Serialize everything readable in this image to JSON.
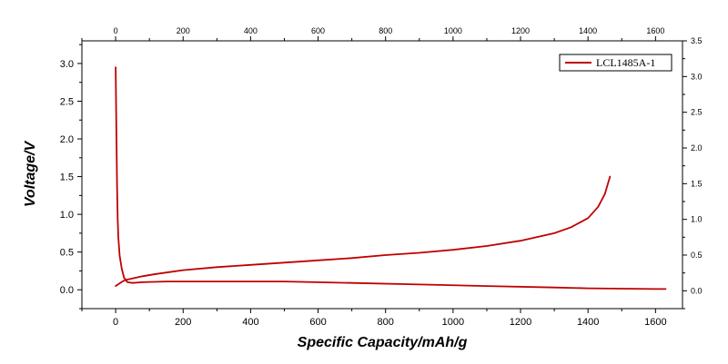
{
  "chart_data": {
    "type": "line",
    "title": "",
    "xlabel": "Specific Capacity/mAh/g",
    "ylabel": "Voltage/V",
    "xlim": [
      -100,
      1680
    ],
    "ylim": [
      -0.25,
      3.3
    ],
    "y2lim": [
      -0.25,
      3.5
    ],
    "x_ticks": [
      0,
      200,
      400,
      600,
      800,
      1000,
      1200,
      1400,
      1600
    ],
    "x_tick_labels": [
      "0",
      "200",
      "400",
      "600",
      "800",
      "1000",
      "1200",
      "1400",
      "1600"
    ],
    "y_ticks": [
      0.0,
      0.5,
      1.0,
      1.5,
      2.0,
      2.5,
      3.0
    ],
    "y_tick_labels": [
      "0.0",
      "0.5",
      "1.0",
      "1.5",
      "2.0",
      "2.5",
      "3.0"
    ],
    "y2_ticks": [
      0.0,
      0.5,
      1.0,
      1.5,
      2.0,
      2.5,
      3.0,
      3.5
    ],
    "y2_tick_labels": [
      "0.0",
      "0.5",
      "1.0",
      "1.5",
      "2.0",
      "2.5",
      "3.0",
      "3.5"
    ],
    "grid": false,
    "legend_position": "top-right",
    "series": [
      {
        "name": "LCL1485A-1",
        "color": "#c00000",
        "segments": [
          {
            "x": [
              0,
              2,
              4,
              6,
              8,
              12,
              18,
              25,
              35,
              50,
              80,
              150,
              300,
              500,
              700,
              900,
              1100,
              1300,
              1400,
              1500,
              1600,
              1630
            ],
            "y": [
              2.95,
              2.2,
              1.4,
              0.95,
              0.7,
              0.45,
              0.28,
              0.16,
              0.1,
              0.09,
              0.1,
              0.11,
              0.11,
              0.11,
              0.09,
              0.07,
              0.05,
              0.03,
              0.02,
              0.015,
              0.01,
              0.01
            ]
          },
          {
            "x": [
              0,
              10,
              20,
              30,
              50,
              80,
              120,
              200,
              300,
              400,
              500,
              600,
              700,
              800,
              900,
              1000,
              1100,
              1200,
              1300,
              1350,
              1400,
              1430,
              1450,
              1465
            ],
            "y": [
              0.05,
              0.08,
              0.11,
              0.13,
              0.15,
              0.18,
              0.21,
              0.26,
              0.3,
              0.33,
              0.36,
              0.39,
              0.42,
              0.46,
              0.49,
              0.53,
              0.58,
              0.65,
              0.75,
              0.83,
              0.95,
              1.1,
              1.27,
              1.5
            ]
          }
        ]
      }
    ]
  }
}
